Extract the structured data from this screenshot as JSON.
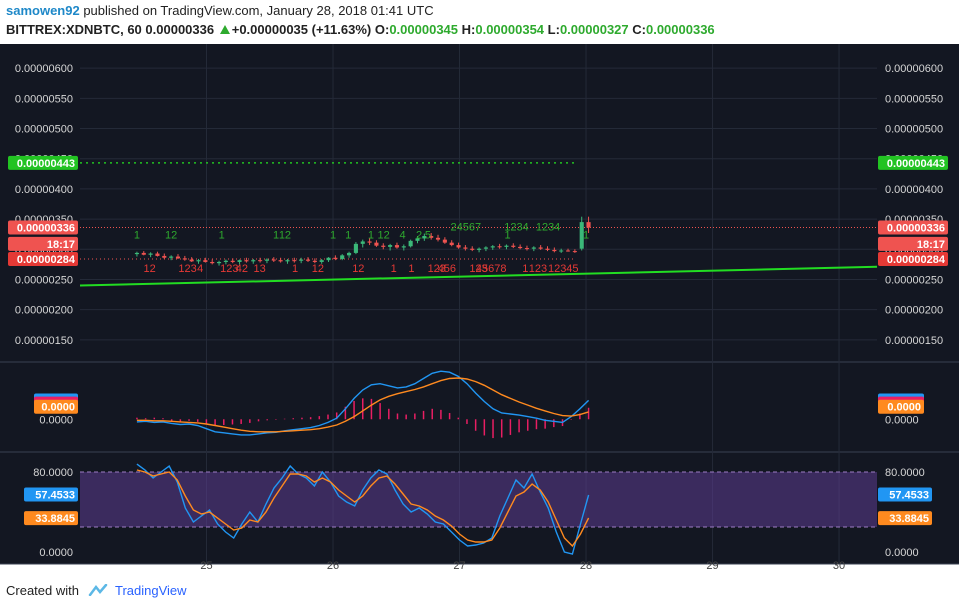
{
  "header": {
    "user": "samowen92",
    "published_text": "published on TradingView.com, January 28, 2018 01:41 UTC",
    "symbol": "BITTREX:XDNBTC, 60",
    "last": "0.00000336",
    "change": "+0.00000035 (+11.63%)",
    "o_label": "O:",
    "o": "0.00000345",
    "h_label": "H:",
    "h": "0.00000354",
    "l_label": "L:",
    "l": "0.00000327",
    "c_label": "C:",
    "c": "0.00000336"
  },
  "footer": {
    "created": "Created with",
    "brand": "TradingView"
  },
  "colors": {
    "bg": "#131722",
    "grid": "#242a38",
    "up": "#3bb879",
    "down": "#ef5350",
    "trend": "#22dd22",
    "macd": "#2196f3",
    "signal": "#ff8a1f",
    "hist": "#e91e63",
    "rsi_band": "#5c3d8f"
  },
  "chart_data": [
    {
      "type": "candlestick",
      "title": "BITTREX:XDNBTC, 60",
      "y_tick_labels": [
        "0.00000600",
        "0.00000550",
        "0.00000500",
        "0.00000450",
        "0.00000400",
        "0.00000350",
        "0.00000300",
        "0.00000250",
        "0.00000200",
        "0.00000150"
      ],
      "ylim": [
        1.2e-06,
        6.3e-06
      ],
      "x_tick_labels": [
        "25",
        "26",
        "27",
        "28",
        "29",
        "30"
      ],
      "price_tags": [
        {
          "value": "0.00000443",
          "price": 4.43e-06,
          "color": "#22c322"
        },
        {
          "value": "0.00000336",
          "price": 3.36e-06,
          "color": "#ef5350"
        },
        {
          "value": "18:17",
          "price": 3.09e-06,
          "color": "#ef5350"
        },
        {
          "value": "0.00000284",
          "price": 2.84e-06,
          "color": "#e53935"
        }
      ],
      "trendline": {
        "from": [
          24.0,
          2.4e-06
        ],
        "to": [
          30.3,
          2.71e-06
        ]
      },
      "ohlc": [
        [
          2.92e-06,
          2.96e-06,
          2.88e-06,
          2.94e-06
        ],
        [
          2.94e-06,
          2.97e-06,
          2.9e-06,
          2.91e-06
        ],
        [
          2.91e-06,
          2.95e-06,
          2.87e-06,
          2.93e-06
        ],
        [
          2.93e-06,
          2.96e-06,
          2.88e-06,
          2.89e-06
        ],
        [
          2.89e-06,
          2.93e-06,
          2.84e-06,
          2.86e-06
        ],
        [
          2.86e-06,
          2.9e-06,
          2.82e-06,
          2.88e-06
        ],
        [
          2.88e-06,
          2.92e-06,
          2.84e-06,
          2.85e-06
        ],
        [
          2.85e-06,
          2.89e-06,
          2.81e-06,
          2.83e-06
        ],
        [
          2.83e-06,
          2.87e-06,
          2.79e-06,
          2.8e-06
        ],
        [
          2.8e-06,
          2.84e-06,
          2.76e-06,
          2.82e-06
        ],
        [
          2.82e-06,
          2.86e-06,
          2.78e-06,
          2.79e-06
        ],
        [
          2.79e-06,
          2.83e-06,
          2.75e-06,
          2.77e-06
        ],
        [
          2.77e-06,
          2.81e-06,
          2.73e-06,
          2.79e-06
        ],
        [
          2.79e-06,
          2.83e-06,
          2.75e-06,
          2.81e-06
        ],
        [
          2.81e-06,
          2.85e-06,
          2.77e-06,
          2.79e-06
        ],
        [
          2.79e-06,
          2.83e-06,
          2.75e-06,
          2.82e-06
        ],
        [
          2.82e-06,
          2.86e-06,
          2.78e-06,
          2.8e-06
        ],
        [
          2.8e-06,
          2.84e-06,
          2.76e-06,
          2.82e-06
        ],
        [
          2.82e-06,
          2.86e-06,
          2.78e-06,
          2.81e-06
        ],
        [
          2.81e-06,
          2.85e-06,
          2.77e-06,
          2.83e-06
        ],
        [
          2.83e-06,
          2.87e-06,
          2.79e-06,
          2.82e-06
        ],
        [
          2.82e-06,
          2.86e-06,
          2.78e-06,
          2.8e-06
        ],
        [
          2.8e-06,
          2.84e-06,
          2.76e-06,
          2.82e-06
        ],
        [
          2.82e-06,
          2.86e-06,
          2.78e-06,
          2.81e-06
        ],
        [
          2.81e-06,
          2.86e-06,
          2.77e-06,
          2.83e-06
        ],
        [
          2.83e-06,
          2.87e-06,
          2.79e-06,
          2.81e-06
        ],
        [
          2.81e-06,
          2.85e-06,
          2.77e-06,
          2.79e-06
        ],
        [
          2.79e-06,
          2.84e-06,
          2.76e-06,
          2.82e-06
        ],
        [
          2.82e-06,
          2.87e-06,
          2.79e-06,
          2.86e-06
        ],
        [
          2.86e-06,
          2.9e-06,
          2.82e-06,
          2.84e-06
        ],
        [
          2.84e-06,
          2.92e-06,
          2.82e-06,
          2.9e-06
        ],
        [
          2.9e-06,
          2.96e-06,
          2.86e-06,
          2.94e-06
        ],
        [
          2.94e-06,
          3.12e-06,
          2.92e-06,
          3.09e-06
        ],
        [
          3.09e-06,
          3.16e-06,
          3.03e-06,
          3.13e-06
        ],
        [
          3.13e-06,
          3.18e-06,
          3.07e-06,
          3.11e-06
        ],
        [
          3.11e-06,
          3.15e-06,
          3.04e-06,
          3.06e-06
        ],
        [
          3.06e-06,
          3.1e-06,
          3e-06,
          3.04e-06
        ],
        [
          3.04e-06,
          3.09e-06,
          2.98e-06,
          3.07e-06
        ],
        [
          3.07e-06,
          3.11e-06,
          3.01e-06,
          3.03e-06
        ],
        [
          3.03e-06,
          3.08e-06,
          2.98e-06,
          3.05e-06
        ],
        [
          3.05e-06,
          3.16e-06,
          3.03e-06,
          3.14e-06
        ],
        [
          3.14e-06,
          3.22e-06,
          3.1e-06,
          3.18e-06
        ],
        [
          3.18e-06,
          3.26e-06,
          3.14e-06,
          3.22e-06
        ],
        [
          3.22e-06,
          3.27e-06,
          3.16e-06,
          3.19e-06
        ],
        [
          3.19e-06,
          3.24e-06,
          3.13e-06,
          3.16e-06
        ],
        [
          3.16e-06,
          3.2e-06,
          3.09e-06,
          3.11e-06
        ],
        [
          3.11e-06,
          3.15e-06,
          3.05e-06,
          3.07e-06
        ],
        [
          3.07e-06,
          3.11e-06,
          3.01e-06,
          3.03e-06
        ],
        [
          3.03e-06,
          3.07e-06,
          2.98e-06,
          3.01e-06
        ],
        [
          3.01e-06,
          3.05e-06,
          2.97e-06,
          2.99e-06
        ],
        [
          2.99e-06,
          3.03e-06,
          2.95e-06,
          3.01e-06
        ],
        [
          3.01e-06,
          3.05e-06,
          2.97e-06,
          3.03e-06
        ],
        [
          3.03e-06,
          3.07e-06,
          2.99e-06,
          3.05e-06
        ],
        [
          3.05e-06,
          3.09e-06,
          3.01e-06,
          3.04e-06
        ],
        [
          3.04e-06,
          3.08e-06,
          3e-06,
          3.06e-06
        ],
        [
          3.06e-06,
          3.1e-06,
          3.02e-06,
          3.04e-06
        ],
        [
          3.04e-06,
          3.08e-06,
          3e-06,
          3.02e-06
        ],
        [
          3.02e-06,
          3.06e-06,
          2.98e-06,
          3.01e-06
        ],
        [
          3.01e-06,
          3.05e-06,
          2.97e-06,
          3.03e-06
        ],
        [
          3.03e-06,
          3.07e-06,
          2.99e-06,
          3.01e-06
        ],
        [
          3.01e-06,
          3.05e-06,
          2.97e-06,
          2.99e-06
        ],
        [
          2.99e-06,
          3.03e-06,
          2.95e-06,
          2.97e-06
        ],
        [
          2.97e-06,
          3.01e-06,
          2.94e-06,
          2.98e-06
        ],
        [
          2.98e-06,
          3.01e-06,
          2.96e-06,
          2.97e-06
        ],
        [
          2.97e-06,
          3e-06,
          2.94e-06,
          2.96e-06
        ],
        [
          3.01e-06,
          3.54e-06,
          2.98e-06,
          3.45e-06
        ],
        [
          3.45e-06,
          3.54e-06,
          3.27e-06,
          3.36e-06
        ]
      ],
      "x_range": [
        24.0,
        30.3
      ],
      "x_start": 24.45,
      "x_end": 28.02,
      "seq_markers": [
        {
          "x": 24.45,
          "above": true,
          "text": "1"
        },
        {
          "x": 24.55,
          "above": false,
          "text": "12"
        },
        {
          "x": 24.72,
          "above": true,
          "text": "12"
        },
        {
          "x": 24.85,
          "above": false,
          "text": "123"
        },
        {
          "x": 24.95,
          "above": false,
          "text": "4"
        },
        {
          "x": 25.12,
          "above": true,
          "text": "1"
        },
        {
          "x": 25.18,
          "above": false,
          "text": "123"
        },
        {
          "x": 25.28,
          "above": false,
          "text": "42"
        },
        {
          "x": 25.42,
          "above": false,
          "text": "13"
        },
        {
          "x": 25.55,
          "above": true,
          "text": "1"
        },
        {
          "x": 25.62,
          "above": true,
          "text": "12"
        },
        {
          "x": 25.7,
          "above": false,
          "text": "1"
        },
        {
          "x": 25.88,
          "above": false,
          "text": "12"
        },
        {
          "x": 26.0,
          "above": true,
          "text": "1"
        },
        {
          "x": 26.12,
          "above": true,
          "text": "1"
        },
        {
          "x": 26.2,
          "above": false,
          "text": "12"
        },
        {
          "x": 26.3,
          "above": true,
          "text": "1"
        },
        {
          "x": 26.4,
          "above": true,
          "text": "12"
        },
        {
          "x": 26.48,
          "above": false,
          "text": "1"
        },
        {
          "x": 26.55,
          "above": true,
          "text": "4"
        },
        {
          "x": 26.62,
          "above": false,
          "text": "1"
        },
        {
          "x": 26.68,
          "above": true,
          "text": "2"
        },
        {
          "x": 26.75,
          "above": true,
          "text": "5"
        },
        {
          "x": 26.82,
          "above": false,
          "text": "123"
        },
        {
          "x": 26.9,
          "above": false,
          "text": "456"
        },
        {
          "x": 27.05,
          "above": true,
          "text": "24567"
        },
        {
          "x": 27.15,
          "above": false,
          "text": "123"
        },
        {
          "x": 27.25,
          "above": false,
          "text": "45678"
        },
        {
          "x": 27.38,
          "above": true,
          "text": "1"
        },
        {
          "x": 27.45,
          "above": true,
          "text": "1234"
        },
        {
          "x": 27.52,
          "above": false,
          "text": "1"
        },
        {
          "x": 27.62,
          "above": false,
          "text": "123"
        },
        {
          "x": 27.7,
          "above": true,
          "text": "1234"
        },
        {
          "x": 27.82,
          "above": false,
          "text": "12345"
        },
        {
          "x": 28.0,
          "above": true,
          "text": "1"
        }
      ]
    },
    {
      "type": "line",
      "title": "MACD",
      "tags": [
        {
          "value": "0.0000",
          "y": 0.36,
          "color": "#2196f3"
        },
        {
          "value": "0.0000",
          "y": 0.3,
          "color": "#e91e63"
        },
        {
          "value": "0.0000",
          "y": 0.24,
          "color": "#ff8a1f"
        }
      ],
      "zero_label": "0.0000",
      "ylim": [
        -0.55,
        1.0
      ],
      "series": [
        {
          "values": [
            -0.05,
            -0.04,
            -0.06,
            -0.05,
            -0.08,
            -0.1,
            -0.09,
            -0.12,
            -0.18,
            -0.24,
            -0.26,
            -0.28,
            -0.3,
            -0.3,
            -0.28,
            -0.26,
            -0.25,
            -0.22,
            -0.2,
            -0.18,
            -0.16,
            -0.12,
            -0.06,
            0.02,
            0.2,
            0.4,
            0.56,
            0.66,
            0.68,
            0.64,
            0.6,
            0.62,
            0.68,
            0.78,
            0.88,
            0.92,
            0.9,
            0.82,
            0.68,
            0.5,
            0.34,
            0.2,
            0.12,
            0.1,
            0.08,
            0.05,
            0.02,
            -0.02,
            -0.04,
            -0.06,
            0.05,
            0.2,
            0.36
          ]
        },
        {
          "values": [
            -0.02,
            -0.02,
            -0.03,
            -0.03,
            -0.04,
            -0.05,
            -0.06,
            -0.07,
            -0.09,
            -0.12,
            -0.15,
            -0.18,
            -0.21,
            -0.23,
            -0.24,
            -0.24,
            -0.24,
            -0.23,
            -0.22,
            -0.21,
            -0.2,
            -0.18,
            -0.15,
            -0.11,
            -0.04,
            0.05,
            0.16,
            0.27,
            0.37,
            0.44,
            0.49,
            0.53,
            0.57,
            0.62,
            0.68,
            0.74,
            0.78,
            0.79,
            0.77,
            0.72,
            0.65,
            0.56,
            0.47,
            0.4,
            0.33,
            0.27,
            0.21,
            0.16,
            0.11,
            0.07,
            0.06,
            0.09,
            0.14
          ]
        }
      ],
      "histogram": [
        0.03,
        0.02,
        0.03,
        0.02,
        -0.04,
        -0.05,
        -0.03,
        -0.05,
        -0.09,
        -0.12,
        -0.11,
        -0.1,
        -0.09,
        -0.07,
        -0.04,
        -0.02,
        -0.01,
        0.01,
        0.02,
        0.03,
        0.04,
        0.06,
        0.09,
        0.13,
        0.24,
        0.35,
        0.4,
        0.39,
        0.31,
        0.2,
        0.11,
        0.09,
        0.11,
        0.16,
        0.2,
        0.18,
        0.12,
        0.03,
        -0.09,
        -0.22,
        -0.31,
        -0.36,
        -0.35,
        -0.3,
        -0.25,
        -0.22,
        -0.19,
        -0.18,
        -0.15,
        -0.13,
        -0.01,
        0.11,
        0.22
      ]
    },
    {
      "type": "line",
      "title": "RSI",
      "tags": [
        {
          "value": "57.4533",
          "y": 57.45,
          "color": "#2196f3"
        },
        {
          "value": "33.8845",
          "y": 33.88,
          "color": "#ff8a1f"
        }
      ],
      "axis_labels": [
        {
          "value": "80.0000",
          "y": 80
        },
        {
          "value": "0.0000",
          "y": 0
        }
      ],
      "band": [
        25,
        80
      ],
      "ylim": [
        -8,
        95
      ],
      "series": [
        {
          "values": [
            88,
            82,
            74,
            80,
            86,
            70,
            44,
            30,
            36,
            42,
            28,
            20,
            14,
            28,
            40,
            30,
            48,
            64,
            74,
            86,
            78,
            74,
            66,
            80,
            70,
            56,
            50,
            46,
            62,
            74,
            82,
            78,
            62,
            48,
            40,
            44,
            38,
            30,
            28,
            20,
            12,
            6,
            7,
            9,
            14,
            36,
            54,
            72,
            64,
            78,
            60,
            44,
            20,
            0,
            -2,
            28,
            57
          ]
        },
        {
          "values": [
            82,
            80,
            76,
            78,
            80,
            72,
            56,
            42,
            38,
            40,
            34,
            28,
            22,
            24,
            32,
            30,
            40,
            54,
            66,
            78,
            78,
            76,
            70,
            74,
            70,
            62,
            56,
            50,
            56,
            66,
            74,
            76,
            68,
            58,
            48,
            46,
            42,
            36,
            32,
            26,
            18,
            12,
            10,
            10,
            12,
            24,
            40,
            56,
            60,
            68,
            62,
            50,
            32,
            14,
            6,
            18,
            34
          ]
        }
      ]
    }
  ]
}
